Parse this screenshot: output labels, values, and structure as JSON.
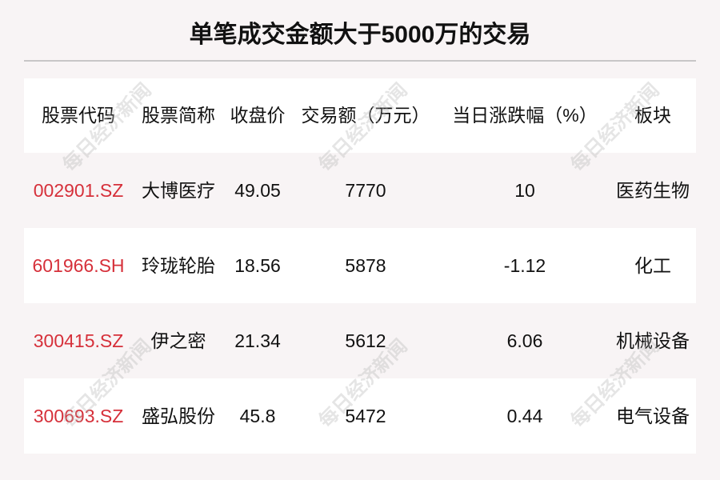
{
  "title": "单笔成交金额大于5000万的交易",
  "watermark": "每日经济新闻",
  "colors": {
    "code": "#d6303a",
    "row_alt": "#f8f4f5"
  },
  "headers": [
    "股票代码",
    "股票简称",
    "收盘价",
    "交易额（万元）",
    "当日涨跌幅（%）",
    "板块"
  ],
  "rows": [
    {
      "code": "002901.SZ",
      "name": "大博医疗",
      "close": "49.05",
      "amount": "7770",
      "change": "10",
      "sector": "医药生物"
    },
    {
      "code": "601966.SH",
      "name": "玲珑轮胎",
      "close": "18.56",
      "amount": "5878",
      "change": "-1.12",
      "sector": "化工"
    },
    {
      "code": "300415.SZ",
      "name": "伊之密",
      "close": "21.34",
      "amount": "5612",
      "change": "6.06",
      "sector": "机械设备"
    },
    {
      "code": "300693.SZ",
      "name": "盛弘股份",
      "close": "45.8",
      "amount": "5472",
      "change": "0.44",
      "sector": "电气设备"
    }
  ]
}
